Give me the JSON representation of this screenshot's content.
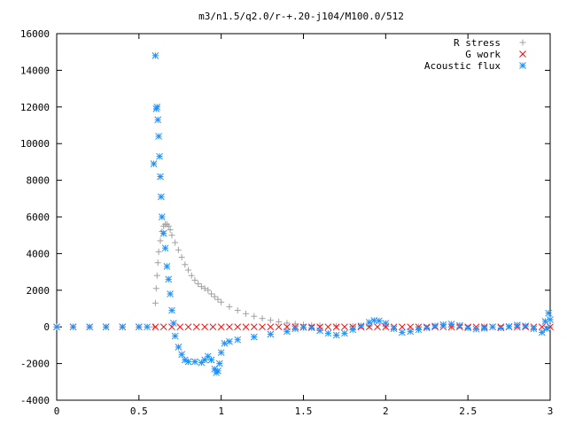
{
  "chart_data": {
    "type": "scatter",
    "title": "m3/n1.5/q2.0/r-+.20-j104/M100.0/512",
    "xlabel": "",
    "ylabel": "",
    "xlim": [
      0,
      3
    ],
    "ylim": [
      -4000,
      16000
    ],
    "x_ticks": [
      0,
      0.5,
      1,
      1.5,
      2,
      2.5,
      3
    ],
    "x_tick_labels": [
      "0",
      "0.5",
      "1",
      "1.5",
      "2",
      "2.5",
      "3"
    ],
    "y_ticks": [
      -4000,
      -2000,
      0,
      2000,
      4000,
      6000,
      8000,
      10000,
      12000,
      14000,
      16000
    ],
    "y_tick_labels": [
      "-4000",
      "-2000",
      "0",
      "2000",
      "4000",
      "6000",
      "8000",
      "10000",
      "12000",
      "14000",
      "16000"
    ],
    "grid": false,
    "legend_position": "top-right",
    "series": [
      {
        "name": "R stress",
        "marker": "plus",
        "color": "#a0a0a0",
        "points": [
          [
            0,
            0
          ],
          [
            0.1,
            0
          ],
          [
            0.2,
            0
          ],
          [
            0.3,
            0
          ],
          [
            0.4,
            0
          ],
          [
            0.5,
            0
          ],
          [
            0.55,
            0
          ],
          [
            0.59,
            0
          ],
          [
            0.6,
            1300
          ],
          [
            0.605,
            2100
          ],
          [
            0.61,
            2800
          ],
          [
            0.615,
            3500
          ],
          [
            0.62,
            4100
          ],
          [
            0.63,
            4700
          ],
          [
            0.64,
            5200
          ],
          [
            0.65,
            5500
          ],
          [
            0.66,
            5600
          ],
          [
            0.67,
            5600
          ],
          [
            0.68,
            5500
          ],
          [
            0.69,
            5300
          ],
          [
            0.7,
            5000
          ],
          [
            0.72,
            4600
          ],
          [
            0.74,
            4200
          ],
          [
            0.76,
            3800
          ],
          [
            0.78,
            3400
          ],
          [
            0.8,
            3100
          ],
          [
            0.82,
            2800
          ],
          [
            0.84,
            2550
          ],
          [
            0.86,
            2350
          ],
          [
            0.88,
            2200
          ],
          [
            0.9,
            2100
          ],
          [
            0.92,
            2000
          ],
          [
            0.94,
            1800
          ],
          [
            0.96,
            1650
          ],
          [
            0.98,
            1500
          ],
          [
            1.0,
            1350
          ],
          [
            1.05,
            1100
          ],
          [
            1.1,
            900
          ],
          [
            1.15,
            720
          ],
          [
            1.2,
            580
          ],
          [
            1.25,
            460
          ],
          [
            1.3,
            360
          ],
          [
            1.35,
            280
          ],
          [
            1.4,
            210
          ],
          [
            1.45,
            160
          ],
          [
            1.5,
            120
          ],
          [
            1.55,
            90
          ],
          [
            1.6,
            70
          ],
          [
            1.7,
            50
          ],
          [
            1.8,
            40
          ],
          [
            1.9,
            30
          ],
          [
            2.0,
            20
          ],
          [
            2.2,
            10
          ],
          [
            2.4,
            0
          ],
          [
            2.6,
            0
          ],
          [
            2.8,
            0
          ],
          [
            3.0,
            0
          ]
        ]
      },
      {
        "name": "G work",
        "marker": "cross",
        "color": "#ff0000",
        "points": [
          [
            0,
            0
          ],
          [
            0.1,
            0
          ],
          [
            0.2,
            0
          ],
          [
            0.3,
            0
          ],
          [
            0.4,
            0
          ],
          [
            0.5,
            0
          ],
          [
            0.6,
            0
          ],
          [
            0.65,
            0
          ],
          [
            0.7,
            0
          ],
          [
            0.75,
            0
          ],
          [
            0.8,
            0
          ],
          [
            0.85,
            0
          ],
          [
            0.9,
            0
          ],
          [
            0.95,
            0
          ],
          [
            1.0,
            0
          ],
          [
            1.05,
            0
          ],
          [
            1.1,
            0
          ],
          [
            1.15,
            0
          ],
          [
            1.2,
            0
          ],
          [
            1.25,
            0
          ],
          [
            1.3,
            0
          ],
          [
            1.35,
            0
          ],
          [
            1.4,
            0
          ],
          [
            1.45,
            0
          ],
          [
            1.5,
            0
          ],
          [
            1.55,
            0
          ],
          [
            1.6,
            0
          ],
          [
            1.65,
            0
          ],
          [
            1.7,
            0
          ],
          [
            1.75,
            0
          ],
          [
            1.8,
            0
          ],
          [
            1.85,
            0
          ],
          [
            1.9,
            0
          ],
          [
            1.95,
            0
          ],
          [
            2.0,
            0
          ],
          [
            2.05,
            0
          ],
          [
            2.1,
            0
          ],
          [
            2.15,
            0
          ],
          [
            2.2,
            0
          ],
          [
            2.25,
            0
          ],
          [
            2.3,
            0
          ],
          [
            2.35,
            0
          ],
          [
            2.4,
            0
          ],
          [
            2.45,
            0
          ],
          [
            2.5,
            0
          ],
          [
            2.55,
            0
          ],
          [
            2.6,
            0
          ],
          [
            2.65,
            0
          ],
          [
            2.7,
            0
          ],
          [
            2.75,
            0
          ],
          [
            2.8,
            0
          ],
          [
            2.85,
            0
          ],
          [
            2.9,
            0
          ],
          [
            2.95,
            0
          ],
          [
            3.0,
            0
          ]
        ]
      },
      {
        "name": "Acoustic flux",
        "marker": "star",
        "color": "#1e90ff",
        "points": [
          [
            0,
            0
          ],
          [
            0.1,
            0
          ],
          [
            0.2,
            0
          ],
          [
            0.3,
            0
          ],
          [
            0.4,
            0
          ],
          [
            0.5,
            0
          ],
          [
            0.55,
            0
          ],
          [
            0.59,
            8900
          ],
          [
            0.6,
            14800
          ],
          [
            0.605,
            11900
          ],
          [
            0.61,
            12000
          ],
          [
            0.615,
            11300
          ],
          [
            0.62,
            10400
          ],
          [
            0.625,
            9300
          ],
          [
            0.63,
            8200
          ],
          [
            0.635,
            7100
          ],
          [
            0.64,
            6000
          ],
          [
            0.65,
            5100
          ],
          [
            0.66,
            4300
          ],
          [
            0.67,
            3300
          ],
          [
            0.68,
            2600
          ],
          [
            0.69,
            1800
          ],
          [
            0.7,
            900
          ],
          [
            0.71,
            200
          ],
          [
            0.72,
            -500
          ],
          [
            0.74,
            -1100
          ],
          [
            0.76,
            -1500
          ],
          [
            0.78,
            -1800
          ],
          [
            0.8,
            -1900
          ],
          [
            0.84,
            -1900
          ],
          [
            0.88,
            -1950
          ],
          [
            0.9,
            -1800
          ],
          [
            0.92,
            -1600
          ],
          [
            0.94,
            -1800
          ],
          [
            0.96,
            -2300
          ],
          [
            0.97,
            -2500
          ],
          [
            0.98,
            -2400
          ],
          [
            0.99,
            -2000
          ],
          [
            1.0,
            -1400
          ],
          [
            1.02,
            -900
          ],
          [
            1.05,
            -800
          ],
          [
            1.1,
            -700
          ],
          [
            1.2,
            -550
          ],
          [
            1.3,
            -400
          ],
          [
            1.4,
            -250
          ],
          [
            1.45,
            -100
          ],
          [
            1.5,
            -30
          ],
          [
            1.55,
            -50
          ],
          [
            1.6,
            -200
          ],
          [
            1.65,
            -350
          ],
          [
            1.7,
            -450
          ],
          [
            1.75,
            -350
          ],
          [
            1.8,
            -150
          ],
          [
            1.85,
            50
          ],
          [
            1.9,
            250
          ],
          [
            1.93,
            350
          ],
          [
            1.96,
            330
          ],
          [
            2.0,
            200
          ],
          [
            2.05,
            -100
          ],
          [
            2.1,
            -300
          ],
          [
            2.15,
            -250
          ],
          [
            2.2,
            -150
          ],
          [
            2.25,
            -50
          ],
          [
            2.3,
            50
          ],
          [
            2.35,
            120
          ],
          [
            2.4,
            150
          ],
          [
            2.45,
            80
          ],
          [
            2.5,
            -50
          ],
          [
            2.55,
            -120
          ],
          [
            2.6,
            -80
          ],
          [
            2.65,
            0
          ],
          [
            2.7,
            -60
          ],
          [
            2.75,
            20
          ],
          [
            2.8,
            100
          ],
          [
            2.85,
            50
          ],
          [
            2.9,
            -100
          ],
          [
            2.95,
            -300
          ],
          [
            2.97,
            300
          ],
          [
            2.98,
            -100
          ],
          [
            2.99,
            750
          ],
          [
            3.0,
            400
          ]
        ]
      }
    ]
  }
}
